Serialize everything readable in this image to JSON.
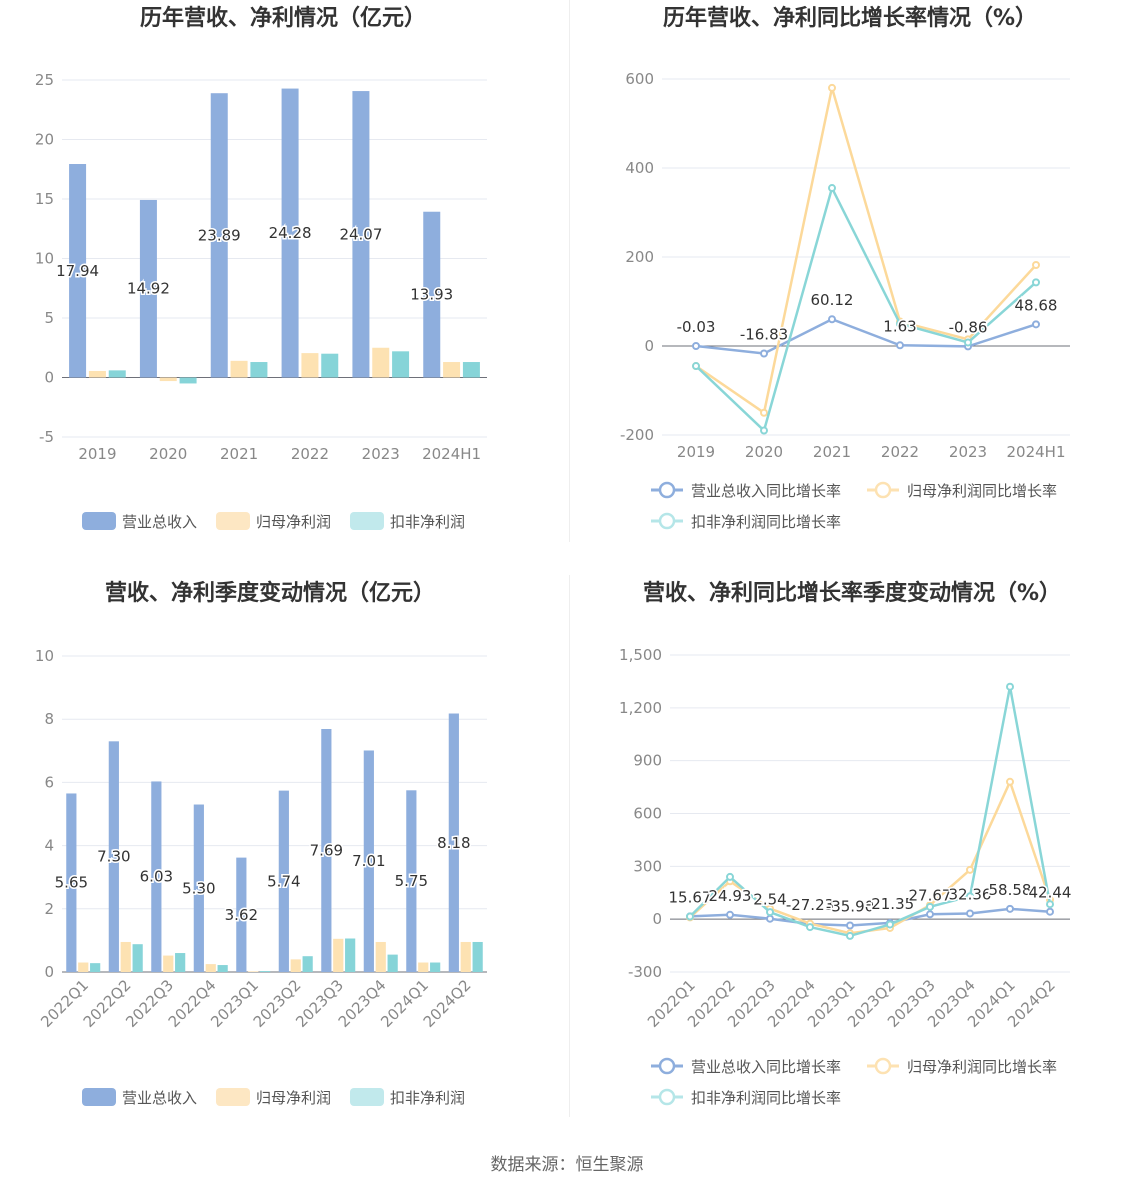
{
  "source": "数据来源：恒生聚源",
  "colors": {
    "revenue": "#8eaedd",
    "netprofit": "#fde2b2",
    "deducted": "#86d4d8",
    "revenueLine": "#8eaedd",
    "netprofitLine": "#fcd99a",
    "deductedLine": "#89d6d7"
  },
  "chart_data": [
    {
      "type": "bar",
      "title": "历年营收、净利情况（亿元）",
      "categories": [
        "2019",
        "2020",
        "2021",
        "2022",
        "2023",
        "2024H1"
      ],
      "ylim": [
        -5,
        25
      ],
      "yticks": [
        "-5",
        "0",
        "5",
        "10",
        "15",
        "20",
        "25"
      ],
      "series": [
        {
          "name": "营业总收入",
          "values": [
            17.94,
            14.92,
            23.89,
            24.28,
            24.07,
            13.93
          ],
          "labels": [
            "17.94",
            "14.92",
            "23.89",
            "24.28",
            "24.07",
            "13.93"
          ]
        },
        {
          "name": "归母净利润",
          "values": [
            0.55,
            -0.3,
            1.4,
            2.05,
            2.5,
            1.3
          ]
        },
        {
          "name": "扣非净利润",
          "values": [
            0.6,
            -0.5,
            1.3,
            2.0,
            2.2,
            1.3
          ]
        }
      ],
      "legend": "bottom"
    },
    {
      "type": "line",
      "title": "历年营收、净利同比增长率情况（%）",
      "categories": [
        "2019",
        "2020",
        "2021",
        "2022",
        "2023",
        "2024H1"
      ],
      "ylim": [
        -200,
        600
      ],
      "yticks": [
        "-200",
        "0",
        "200",
        "400",
        "600"
      ],
      "series": [
        {
          "name": "营业总收入同比增长率",
          "values": [
            -0.03,
            -16.83,
            60.12,
            1.63,
            -0.86,
            48.68
          ],
          "labels": [
            "-0.03",
            "-16.83",
            "60.12",
            "1.63",
            "-0.86",
            "48.68"
          ]
        },
        {
          "name": "归母净利润同比增长率",
          "values": [
            -45,
            -150,
            580,
            55,
            15,
            182
          ]
        },
        {
          "name": "扣非净利润同比增长率",
          "values": [
            -45,
            -190,
            355,
            50,
            8,
            143
          ]
        }
      ],
      "legend": "bottom"
    },
    {
      "type": "bar",
      "title": "营收、净利季度变动情况（亿元）",
      "categories": [
        "2022Q1",
        "2022Q2",
        "2022Q3",
        "2022Q4",
        "2023Q1",
        "2023Q2",
        "2023Q3",
        "2023Q4",
        "2024Q1",
        "2024Q2"
      ],
      "ylim": [
        0,
        10
      ],
      "yticks": [
        "0",
        "2",
        "4",
        "6",
        "8",
        "10"
      ],
      "series": [
        {
          "name": "营业总收入",
          "values": [
            5.65,
            7.3,
            6.03,
            5.3,
            3.62,
            5.74,
            7.69,
            7.01,
            5.75,
            8.18
          ],
          "labels": [
            "5.65",
            "7.30",
            "6.03",
            "5.30",
            "3.62",
            "5.74",
            "7.69",
            "7.01",
            "5.75",
            "8.18"
          ]
        },
        {
          "name": "归母净利润",
          "values": [
            0.3,
            0.95,
            0.52,
            0.25,
            0.02,
            0.4,
            1.05,
            0.95,
            0.3,
            0.95
          ]
        },
        {
          "name": "扣非净利润",
          "values": [
            0.28,
            0.88,
            0.6,
            0.22,
            0.03,
            0.5,
            1.06,
            0.55,
            0.3,
            0.95
          ]
        }
      ],
      "legend": "bottom"
    },
    {
      "type": "line",
      "title": "营收、净利同比增长率季度变动情况（%）",
      "categories": [
        "2022Q1",
        "2022Q2",
        "2022Q3",
        "2022Q4",
        "2023Q1",
        "2023Q2",
        "2023Q3",
        "2023Q4",
        "2024Q1",
        "2024Q2"
      ],
      "ylim": [
        -300,
        1500
      ],
      "yticks": [
        "-300",
        "0",
        "300",
        "600",
        "900",
        "1,200",
        "1,500"
      ],
      "series": [
        {
          "name": "营业总收入同比增长率",
          "values": [
            15.67,
            24.93,
            2.54,
            -27.23,
            -35.9,
            -21.35,
            27.67,
            32.36,
            58.58,
            42.44
          ],
          "labels": [
            "15.67",
            "24.93",
            "2.54",
            "-27.23",
            "-35.90",
            "-21.35",
            "27.67",
            "32.36",
            "58.58",
            "42.44"
          ]
        },
        {
          "name": "归母净利润同比增长率",
          "values": [
            10,
            215,
            60,
            -25,
            -80,
            -50,
            80,
            280,
            780,
            110
          ]
        },
        {
          "name": "扣非净利润同比增长率",
          "values": [
            15,
            240,
            40,
            -45,
            -95,
            -30,
            70,
            130,
            1320,
            85
          ]
        }
      ],
      "legend": "bottom"
    }
  ]
}
